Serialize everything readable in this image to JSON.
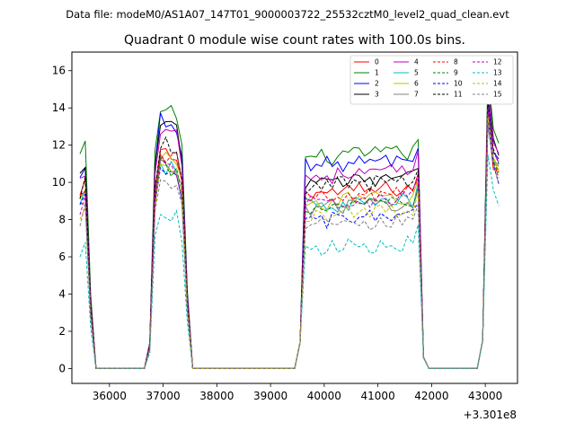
{
  "figure": {
    "suptitle": "Data file: modeM0/AS1A07_147T01_9000003722_25532cztM0_level2_quad_clean.evt",
    "title": "Quadrant 0 module wise count rates with 100.0s bins.",
    "x_offset_label": "+3.301e8"
  },
  "chart_data": {
    "type": "line",
    "title": "Quadrant 0 module wise count rates with 100.0s bins.",
    "xlabel": "",
    "ylabel": "",
    "x_offset": 330100000,
    "xlim": [
      35300,
      43600
    ],
    "ylim": [
      -0.8,
      17.0
    ],
    "xticks": [
      36000,
      37000,
      38000,
      39000,
      40000,
      41000,
      42000,
      43000
    ],
    "yticks": [
      0,
      2,
      4,
      6,
      8,
      10,
      12,
      14,
      16
    ],
    "xtick_labels": [
      "36000",
      "37000",
      "38000",
      "39000",
      "40000",
      "41000",
      "42000",
      "43000"
    ],
    "ytick_labels": [
      "0",
      "2",
      "4",
      "6",
      "8",
      "10",
      "12",
      "14",
      "16"
    ],
    "grid": false,
    "legend_position": "top-right",
    "legend_columns": 4,
    "segments": [
      {
        "start": 35450,
        "end": 35750,
        "bins": 4
      },
      {
        "start": 36750,
        "end": 37500,
        "bins": 9
      },
      {
        "start": 39550,
        "end": 41750,
        "bins": 23
      },
      {
        "start": 41750,
        "end": 42050,
        "bins": 4
      },
      {
        "start": 42950,
        "end": 43250,
        "bins": 4
      }
    ],
    "series": [
      {
        "name": "0",
        "color": "#ff0000",
        "dash": "solid",
        "levels": [
          9.2,
          11.6,
          9.4,
          13.0
        ]
      },
      {
        "name": "1",
        "color": "#008000",
        "dash": "solid",
        "levels": [
          11.4,
          14.0,
          11.3,
          15.5
        ]
      },
      {
        "name": "2",
        "color": "#0000ff",
        "dash": "solid",
        "levels": [
          10.1,
          13.4,
          10.9,
          14.0
        ]
      },
      {
        "name": "3",
        "color": "#000000",
        "dash": "solid",
        "levels": [
          10.3,
          13.1,
          9.9,
          14.8
        ]
      },
      {
        "name": "4",
        "color": "#bf00bf",
        "dash": "solid",
        "levels": [
          10.0,
          13.0,
          10.3,
          14.5
        ]
      },
      {
        "name": "5",
        "color": "#00bfbf",
        "dash": "solid",
        "levels": [
          8.6,
          10.9,
          8.7,
          13.2
        ]
      },
      {
        "name": "6",
        "color": "#bfbf00",
        "dash": "solid",
        "levels": [
          8.8,
          11.5,
          8.9,
          13.4
        ]
      },
      {
        "name": "7",
        "color": "#808080",
        "dash": "solid",
        "levels": [
          8.9,
          11.2,
          8.6,
          13.3
        ]
      },
      {
        "name": "8",
        "color": "#ff0000",
        "dash": "dashed",
        "levels": [
          9.0,
          11.6,
          9.1,
          13.1
        ]
      },
      {
        "name": "9",
        "color": "#008000",
        "dash": "dashed",
        "levels": [
          8.5,
          10.9,
          8.6,
          13.0
        ]
      },
      {
        "name": "10",
        "color": "#0000ff",
        "dash": "dashed",
        "levels": [
          8.4,
          10.7,
          7.9,
          12.8
        ]
      },
      {
        "name": "11",
        "color": "#000000",
        "dash": "dashed",
        "levels": [
          9.5,
          12.1,
          9.8,
          13.7
        ]
      },
      {
        "name": "12",
        "color": "#bf00bf",
        "dash": "dashed",
        "levels": [
          8.6,
          11.0,
          8.9,
          13.4
        ]
      },
      {
        "name": "13",
        "color": "#00bfbf",
        "dash": "dashed",
        "levels": [
          6.3,
          8.4,
          6.4,
          11.0
        ]
      },
      {
        "name": "14",
        "color": "#bfbf00",
        "dash": "dashed",
        "levels": [
          8.3,
          10.6,
          8.3,
          13.0
        ]
      },
      {
        "name": "15",
        "color": "#808080",
        "dash": "dashed",
        "levels": [
          7.9,
          10.1,
          7.6,
          12.6
        ]
      }
    ]
  }
}
